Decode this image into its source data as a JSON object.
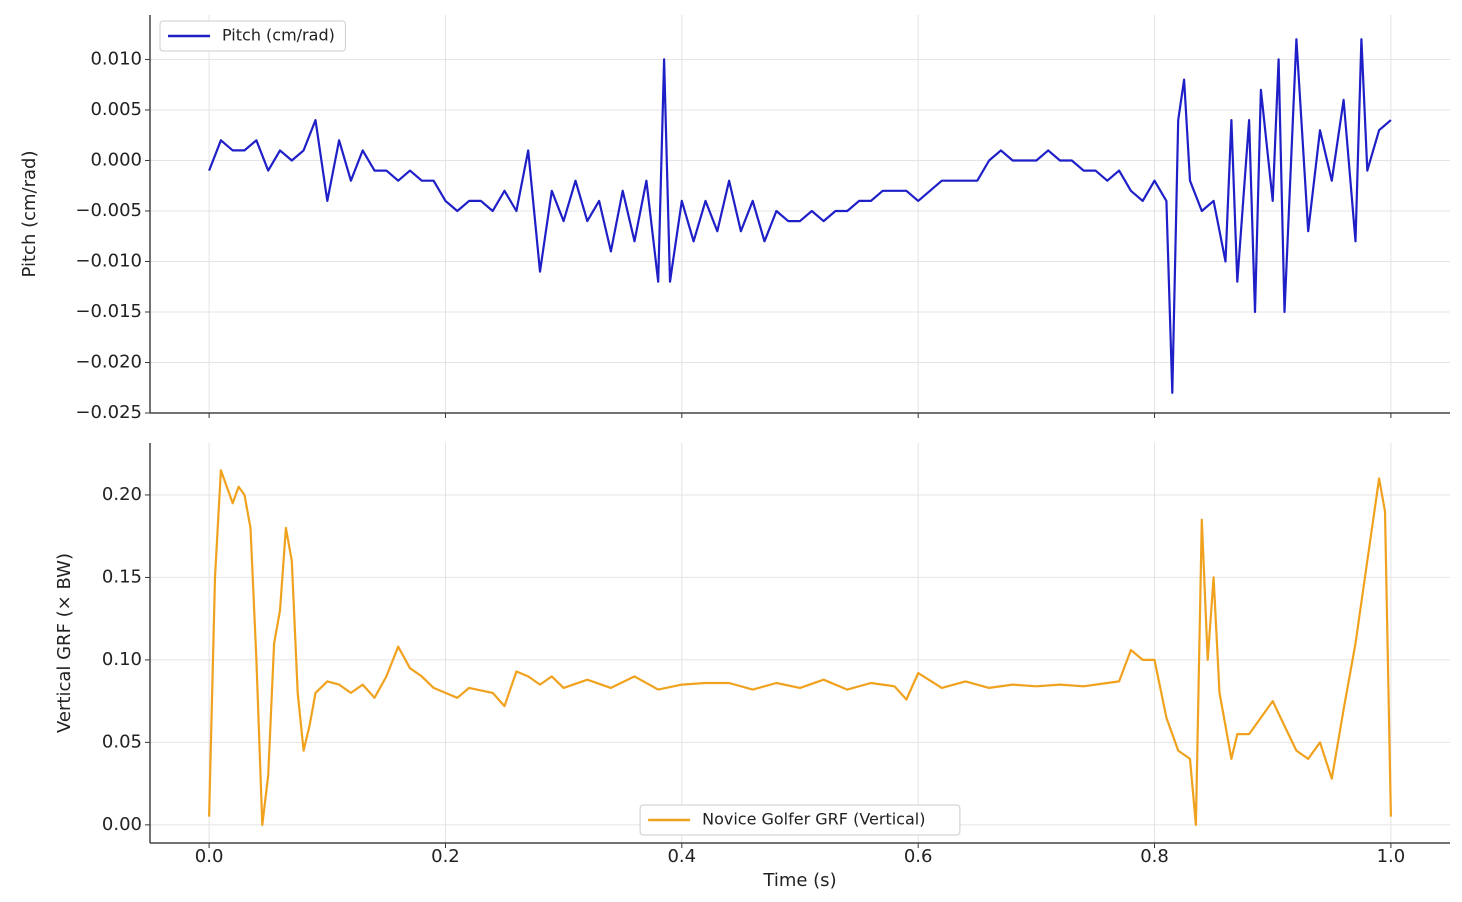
{
  "chart_data": [
    {
      "type": "line",
      "ylabel": "Pitch (cm/rad)",
      "x": [
        0.0,
        0.01,
        0.02,
        0.03,
        0.04,
        0.05,
        0.06,
        0.07,
        0.08,
        0.09,
        0.1,
        0.11,
        0.12,
        0.13,
        0.14,
        0.15,
        0.16,
        0.17,
        0.18,
        0.19,
        0.2,
        0.21,
        0.22,
        0.23,
        0.24,
        0.25,
        0.26,
        0.27,
        0.28,
        0.29,
        0.3,
        0.31,
        0.32,
        0.33,
        0.34,
        0.35,
        0.36,
        0.37,
        0.38,
        0.385,
        0.39,
        0.4,
        0.41,
        0.42,
        0.43,
        0.44,
        0.45,
        0.46,
        0.47,
        0.48,
        0.49,
        0.5,
        0.51,
        0.52,
        0.53,
        0.54,
        0.55,
        0.56,
        0.57,
        0.58,
        0.59,
        0.6,
        0.61,
        0.62,
        0.63,
        0.64,
        0.65,
        0.66,
        0.67,
        0.68,
        0.69,
        0.7,
        0.71,
        0.72,
        0.73,
        0.74,
        0.75,
        0.76,
        0.77,
        0.78,
        0.79,
        0.8,
        0.81,
        0.815,
        0.82,
        0.825,
        0.83,
        0.84,
        0.85,
        0.86,
        0.865,
        0.87,
        0.88,
        0.885,
        0.89,
        0.9,
        0.905,
        0.91,
        0.92,
        0.93,
        0.94,
        0.95,
        0.96,
        0.97,
        0.975,
        0.98,
        0.99,
        1.0
      ],
      "series": [
        {
          "name": "Pitch (cm/rad)",
          "color": "#1f1fc8",
          "values": [
            -0.001,
            0.002,
            0.001,
            0.001,
            0.002,
            -0.001,
            0.001,
            0.0,
            0.001,
            0.004,
            -0.004,
            0.002,
            -0.002,
            0.001,
            -0.001,
            -0.001,
            -0.002,
            -0.001,
            -0.002,
            -0.002,
            -0.004,
            -0.005,
            -0.004,
            -0.004,
            -0.005,
            -0.003,
            -0.005,
            0.001,
            -0.011,
            -0.003,
            -0.006,
            -0.002,
            -0.006,
            -0.004,
            -0.009,
            -0.003,
            -0.008,
            -0.002,
            -0.012,
            0.01,
            -0.012,
            -0.004,
            -0.008,
            -0.004,
            -0.007,
            -0.002,
            -0.007,
            -0.004,
            -0.008,
            -0.005,
            -0.006,
            -0.006,
            -0.005,
            -0.006,
            -0.005,
            -0.005,
            -0.004,
            -0.004,
            -0.003,
            -0.003,
            -0.003,
            -0.004,
            -0.003,
            -0.002,
            -0.002,
            -0.002,
            -0.002,
            0.0,
            0.001,
            0.0,
            0.0,
            0.0,
            0.001,
            0.0,
            0.0,
            -0.001,
            -0.001,
            -0.002,
            -0.001,
            -0.003,
            -0.004,
            -0.002,
            -0.004,
            -0.023,
            0.004,
            0.008,
            -0.002,
            -0.005,
            -0.004,
            -0.01,
            0.004,
            -0.012,
            0.004,
            -0.015,
            0.007,
            -0.004,
            0.01,
            -0.015,
            0.012,
            -0.007,
            0.003,
            -0.002,
            0.006,
            -0.008,
            0.012,
            -0.001,
            0.003,
            0.004
          ]
        }
      ],
      "xlim": [
        -0.05,
        1.05
      ],
      "xticks": [
        0,
        0.2,
        0.4,
        0.6,
        0.8,
        1
      ],
      "ylim": [
        -0.025,
        0.0144
      ],
      "yticks": [
        {
          "value": -0.025,
          "label": "−0.025"
        },
        {
          "value": -0.02,
          "label": "−0.020"
        },
        {
          "value": -0.015,
          "label": "−0.015"
        },
        {
          "value": -0.01,
          "label": "−0.010"
        },
        {
          "value": -0.005,
          "label": "−0.005"
        },
        {
          "value": 0,
          "label": "0.000"
        },
        {
          "value": 0.005,
          "label": "0.005"
        },
        {
          "value": 0.01,
          "label": "0.010"
        }
      ],
      "grid": true,
      "legend": "upper-left"
    },
    {
      "type": "line",
      "xlabel": "Time (s)",
      "ylabel": "Vertical GRF (× BW)",
      "x": [
        0.0,
        0.005,
        0.01,
        0.015,
        0.02,
        0.025,
        0.03,
        0.035,
        0.04,
        0.045,
        0.05,
        0.055,
        0.06,
        0.065,
        0.07,
        0.075,
        0.08,
        0.085,
        0.09,
        0.1,
        0.11,
        0.12,
        0.13,
        0.14,
        0.15,
        0.16,
        0.17,
        0.18,
        0.19,
        0.2,
        0.21,
        0.22,
        0.24,
        0.25,
        0.26,
        0.27,
        0.28,
        0.29,
        0.3,
        0.32,
        0.34,
        0.36,
        0.38,
        0.4,
        0.42,
        0.44,
        0.46,
        0.48,
        0.5,
        0.52,
        0.54,
        0.56,
        0.58,
        0.59,
        0.6,
        0.62,
        0.64,
        0.66,
        0.68,
        0.7,
        0.72,
        0.74,
        0.76,
        0.77,
        0.78,
        0.79,
        0.8,
        0.81,
        0.82,
        0.83,
        0.835,
        0.84,
        0.845,
        0.85,
        0.855,
        0.86,
        0.865,
        0.87,
        0.88,
        0.89,
        0.9,
        0.91,
        0.92,
        0.93,
        0.94,
        0.95,
        0.96,
        0.97,
        0.98,
        0.99,
        0.995,
        1.0
      ],
      "series": [
        {
          "name": "Novice Golfer GRF (Vertical)",
          "color": "#f0a21e",
          "values": [
            0.005,
            0.15,
            0.215,
            0.205,
            0.195,
            0.205,
            0.2,
            0.18,
            0.1,
            0.0,
            0.03,
            0.11,
            0.13,
            0.18,
            0.16,
            0.08,
            0.045,
            0.06,
            0.08,
            0.087,
            0.085,
            0.08,
            0.085,
            0.077,
            0.09,
            0.108,
            0.095,
            0.09,
            0.083,
            0.08,
            0.077,
            0.083,
            0.08,
            0.072,
            0.093,
            0.09,
            0.085,
            0.09,
            0.083,
            0.088,
            0.083,
            0.09,
            0.082,
            0.085,
            0.086,
            0.086,
            0.082,
            0.086,
            0.083,
            0.088,
            0.082,
            0.086,
            0.084,
            0.076,
            0.092,
            0.083,
            0.087,
            0.083,
            0.085,
            0.084,
            0.085,
            0.084,
            0.086,
            0.087,
            0.106,
            0.1,
            0.1,
            0.065,
            0.045,
            0.04,
            0.0,
            0.185,
            0.1,
            0.15,
            0.08,
            0.06,
            0.04,
            0.055,
            0.055,
            0.065,
            0.075,
            0.06,
            0.045,
            0.04,
            0.05,
            0.028,
            0.07,
            0.11,
            0.16,
            0.21,
            0.19,
            0.005
          ]
        }
      ],
      "xlim": [
        -0.05,
        1.05
      ],
      "xticks": [
        {
          "value": 0,
          "label": "0.0"
        },
        {
          "value": 0.2,
          "label": "0.2"
        },
        {
          "value": 0.4,
          "label": "0.4"
        },
        {
          "value": 0.6,
          "label": "0.6"
        },
        {
          "value": 0.8,
          "label": "0.8"
        },
        {
          "value": 1,
          "label": "1.0"
        }
      ],
      "ylim": [
        -0.011,
        0.2315
      ],
      "yticks": [
        {
          "value": 0,
          "label": "0.00"
        },
        {
          "value": 0.05,
          "label": "0.05"
        },
        {
          "value": 0.1,
          "label": "0.10"
        },
        {
          "value": 0.15,
          "label": "0.15"
        },
        {
          "value": 0.2,
          "label": "0.20"
        }
      ],
      "grid": true,
      "legend": "lower-center"
    }
  ]
}
